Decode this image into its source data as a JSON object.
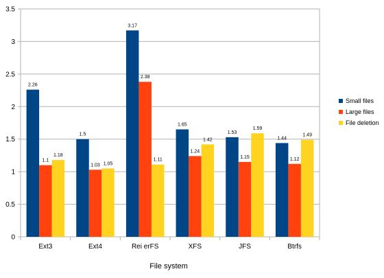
{
  "chart_data": {
    "type": "bar",
    "xlabel": "File system",
    "ylabel": "",
    "title": "",
    "categories": [
      "Ext3",
      "Ext4",
      "Rei erFS",
      "XFS",
      "JFS",
      "Btrfs"
    ],
    "series": [
      {
        "name": "Small files",
        "color": "#004586",
        "values": [
          2.26,
          1.5,
          3.17,
          1.65,
          1.53,
          1.44
        ],
        "labels": [
          "2.26",
          "1.5",
          "3.17",
          "1.65",
          "1.53",
          "1.44"
        ]
      },
      {
        "name": "Large files",
        "color": "#ff420e",
        "values": [
          1.1,
          1.03,
          2.38,
          1.24,
          1.15,
          1.12
        ],
        "labels": [
          "1.1",
          "1.03",
          "2.38",
          "1.24",
          "1.15",
          "1.12"
        ]
      },
      {
        "name": "File deletion",
        "color": "#ffd320",
        "values": [
          1.18,
          1.05,
          1.11,
          1.42,
          1.59,
          1.49
        ],
        "labels": [
          "1.18",
          "1.05",
          "1.11",
          "1.42",
          "1.59",
          "1.49"
        ]
      }
    ],
    "ylim": [
      0,
      3.5
    ],
    "yticks": [
      "0",
      "0.5",
      "1",
      "1.5",
      "2",
      "2.5",
      "3",
      "3.5"
    ],
    "grid": true,
    "legend_position": "right"
  }
}
